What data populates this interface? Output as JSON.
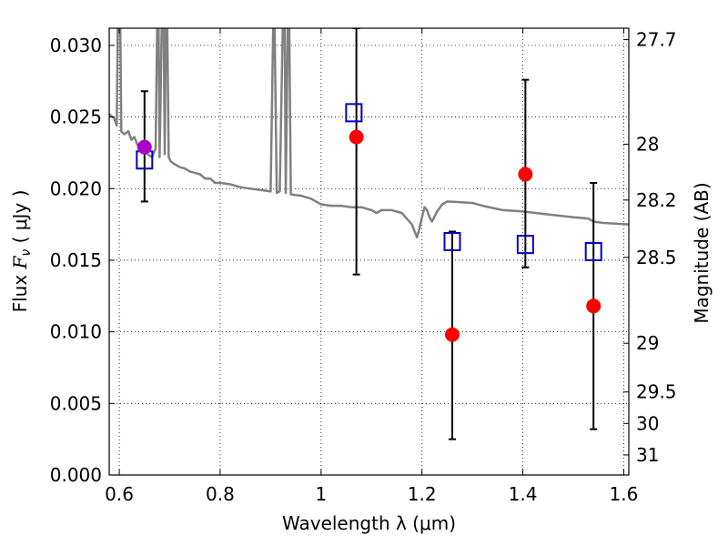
{
  "chart_data": {
    "type": "scatter",
    "xlabel": "Wavelength  λ (μm)",
    "ylabel_prefix": "Flux  ",
    "ylabel_symbol": "F",
    "ylabel_sub": "ν",
    "ylabel_unit": "  ( μJy )",
    "y2label": "Magnitude (AB)",
    "xlim": [
      0.58,
      1.61
    ],
    "ylim": [
      0.0,
      0.0312
    ],
    "grid": true,
    "x_ticks": [
      0.6,
      0.8,
      1.0,
      1.2,
      1.4,
      1.6
    ],
    "x_tick_labels": [
      "0.6",
      "0.8",
      "1",
      "1.2",
      "1.4",
      "1.6"
    ],
    "y_ticks": [
      0.0,
      0.005,
      0.01,
      0.015,
      0.02,
      0.025,
      0.03
    ],
    "y_tick_labels": [
      "0.000",
      "0.005",
      "0.010",
      "0.015",
      "0.020",
      "0.025",
      "0.030"
    ],
    "y2_ticks": [
      {
        "flux": 0.0304,
        "label": "27.7"
      },
      {
        "flux": 0.0231,
        "label": "28"
      },
      {
        "flux": 0.0192,
        "label": "28.2"
      },
      {
        "flux": 0.0152,
        "label": "28.5"
      },
      {
        "flux": 0.0092,
        "label": "29"
      },
      {
        "flux": 0.0058,
        "label": "29.5"
      },
      {
        "flux": 0.0036,
        "label": "30"
      },
      {
        "flux": 0.0014,
        "label": "31"
      }
    ],
    "series": [
      {
        "kind": "line",
        "color": "#808080",
        "points": [
          [
            0.58,
            0.0252
          ],
          [
            0.59,
            0.0249
          ],
          [
            0.595,
            0.0244
          ],
          [
            0.597,
            0.0312
          ],
          [
            0.602,
            0.0312
          ],
          [
            0.604,
            0.024
          ],
          [
            0.61,
            0.0238
          ],
          [
            0.618,
            0.024
          ],
          [
            0.624,
            0.0234
          ],
          [
            0.63,
            0.0236
          ],
          [
            0.64,
            0.0227
          ],
          [
            0.65,
            0.0226
          ],
          [
            0.66,
            0.0223
          ],
          [
            0.665,
            0.0222
          ],
          [
            0.672,
            0.0228
          ],
          [
            0.675,
            0.0312
          ],
          [
            0.678,
            0.0312
          ],
          [
            0.68,
            0.0222
          ],
          [
            0.684,
            0.0312
          ],
          [
            0.688,
            0.0312
          ],
          [
            0.69,
            0.0224
          ],
          [
            0.692,
            0.0312
          ],
          [
            0.695,
            0.0312
          ],
          [
            0.698,
            0.0222
          ],
          [
            0.702,
            0.0219
          ],
          [
            0.71,
            0.0217
          ],
          [
            0.72,
            0.0215
          ],
          [
            0.73,
            0.0214
          ],
          [
            0.74,
            0.0212
          ],
          [
            0.75,
            0.0211
          ],
          [
            0.76,
            0.021
          ],
          [
            0.77,
            0.0207
          ],
          [
            0.78,
            0.0207
          ],
          [
            0.79,
            0.0204
          ],
          [
            0.8,
            0.0204
          ],
          [
            0.82,
            0.0203
          ],
          [
            0.84,
            0.0201
          ],
          [
            0.86,
            0.02
          ],
          [
            0.88,
            0.0199
          ],
          [
            0.9,
            0.0198
          ],
          [
            0.905,
            0.0312
          ],
          [
            0.908,
            0.0312
          ],
          [
            0.912,
            0.0197
          ],
          [
            0.918,
            0.0198
          ],
          [
            0.924,
            0.0312
          ],
          [
            0.928,
            0.0312
          ],
          [
            0.93,
            0.0197
          ],
          [
            0.934,
            0.0312
          ],
          [
            0.937,
            0.0312
          ],
          [
            0.94,
            0.0196
          ],
          [
            0.96,
            0.0195
          ],
          [
            0.98,
            0.0193
          ],
          [
            1.0,
            0.0189
          ],
          [
            1.02,
            0.0188
          ],
          [
            1.04,
            0.0188
          ],
          [
            1.06,
            0.0187
          ],
          [
            1.08,
            0.0187
          ],
          [
            1.1,
            0.0185
          ],
          [
            1.11,
            0.0183
          ],
          [
            1.12,
            0.0185
          ],
          [
            1.14,
            0.0185
          ],
          [
            1.16,
            0.0183
          ],
          [
            1.17,
            0.0179
          ],
          [
            1.18,
            0.0175
          ],
          [
            1.19,
            0.0166
          ],
          [
            1.195,
            0.0172
          ],
          [
            1.2,
            0.018
          ],
          [
            1.205,
            0.0187
          ],
          [
            1.21,
            0.0185
          ],
          [
            1.215,
            0.018
          ],
          [
            1.22,
            0.0177
          ],
          [
            1.23,
            0.0184
          ],
          [
            1.24,
            0.0189
          ],
          [
            1.25,
            0.0191
          ],
          [
            1.3,
            0.019
          ],
          [
            1.32,
            0.0188
          ],
          [
            1.36,
            0.0185
          ],
          [
            1.4,
            0.0184
          ],
          [
            1.45,
            0.0182
          ],
          [
            1.5,
            0.018
          ],
          [
            1.53,
            0.0179
          ],
          [
            1.54,
            0.0177
          ],
          [
            1.56,
            0.0176
          ],
          [
            1.61,
            0.0175
          ]
        ]
      },
      {
        "kind": "open-square",
        "color": "#0000cc",
        "points": [
          [
            0.65,
            0.022
          ],
          [
            1.065,
            0.0253
          ],
          [
            1.26,
            0.0163
          ],
          [
            1.405,
            0.0161
          ],
          [
            1.54,
            0.0156
          ]
        ]
      },
      {
        "kind": "filled-circle",
        "color": "#ff0000",
        "points": [
          [
            1.07,
            0.0236
          ],
          [
            1.26,
            0.0098
          ],
          [
            1.405,
            0.021
          ],
          [
            1.54,
            0.0118
          ]
        ]
      },
      {
        "kind": "filled-circle",
        "color": "#aa00cc",
        "points": [
          [
            0.65,
            0.0229
          ]
        ]
      },
      {
        "kind": "errorbar",
        "color": "#000000",
        "points": [
          {
            "x": 0.65,
            "lo": 0.0191,
            "hi": 0.0268
          },
          {
            "x": 1.07,
            "lo": 0.014,
            "hi": 0.0312
          },
          {
            "x": 1.26,
            "lo": 0.0025,
            "hi": 0.017
          },
          {
            "x": 1.405,
            "lo": 0.0145,
            "hi": 0.0276
          },
          {
            "x": 1.54,
            "lo": 0.0032,
            "hi": 0.0204
          }
        ]
      }
    ]
  }
}
